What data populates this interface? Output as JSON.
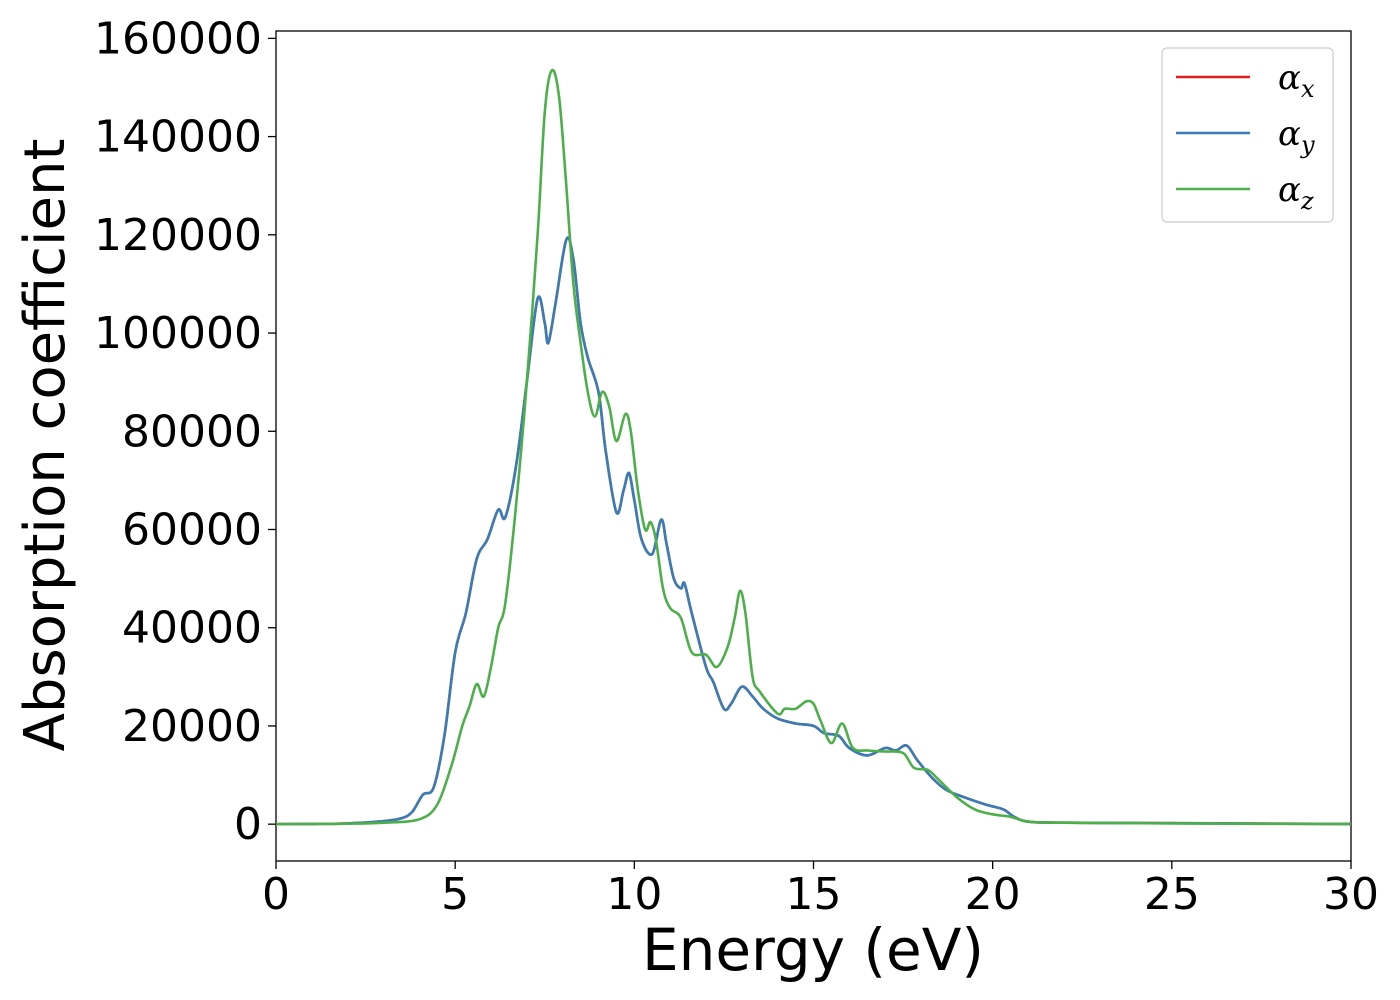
{
  "chart_data": {
    "type": "line",
    "title": "",
    "xlabel": "Energy (eV)",
    "ylabel": "Absorption coefficient",
    "xlim": [
      0,
      30
    ],
    "ylim": [
      -7500,
      161500
    ],
    "xticks": [
      0,
      5,
      10,
      15,
      20,
      25,
      30
    ],
    "yticks": [
      0,
      20000,
      40000,
      60000,
      80000,
      100000,
      120000,
      140000,
      160000
    ],
    "grid": false,
    "legend": "top-right",
    "series": [
      {
        "name": "αx",
        "legend_base": "α",
        "legend_sub": "x",
        "color": "#e41a1c",
        "points": [
          [
            0,
            0
          ],
          [
            1,
            50
          ],
          [
            2,
            150
          ],
          [
            3,
            600
          ],
          [
            3.5,
            1200
          ],
          [
            3.8,
            2500
          ],
          [
            4.1,
            6000
          ],
          [
            4.4,
            7500
          ],
          [
            4.7,
            18000
          ],
          [
            5.0,
            35000
          ],
          [
            5.3,
            43000
          ],
          [
            5.6,
            54000
          ],
          [
            5.9,
            58000
          ],
          [
            6.2,
            64000
          ],
          [
            6.4,
            62500
          ],
          [
            6.7,
            73000
          ],
          [
            7.0,
            90000
          ],
          [
            7.3,
            107000
          ],
          [
            7.5,
            102000
          ],
          [
            7.6,
            98000
          ],
          [
            7.8,
            106000
          ],
          [
            8.1,
            119000
          ],
          [
            8.3,
            115000
          ],
          [
            8.5,
            102000
          ],
          [
            8.7,
            95000
          ],
          [
            9.0,
            88000
          ],
          [
            9.2,
            76000
          ],
          [
            9.5,
            63500
          ],
          [
            9.7,
            68000
          ],
          [
            9.85,
            71500
          ],
          [
            10.0,
            66000
          ],
          [
            10.2,
            58000
          ],
          [
            10.5,
            55000
          ],
          [
            10.75,
            62000
          ],
          [
            10.9,
            57000
          ],
          [
            11.1,
            50000
          ],
          [
            11.3,
            48000
          ],
          [
            11.4,
            49000
          ],
          [
            11.6,
            43000
          ],
          [
            12.0,
            32000
          ],
          [
            12.2,
            29000
          ],
          [
            12.5,
            23500
          ],
          [
            12.7,
            24500
          ],
          [
            13.0,
            28000
          ],
          [
            13.3,
            26000
          ],
          [
            13.6,
            23500
          ],
          [
            14.0,
            21500
          ],
          [
            14.5,
            20500
          ],
          [
            15.0,
            20000
          ],
          [
            15.3,
            18500
          ],
          [
            15.7,
            18000
          ],
          [
            16.0,
            15500
          ],
          [
            16.5,
            14000
          ],
          [
            17.0,
            15500
          ],
          [
            17.3,
            15000
          ],
          [
            17.6,
            16000
          ],
          [
            17.9,
            13000
          ],
          [
            18.3,
            9500
          ],
          [
            18.7,
            7000
          ],
          [
            19.2,
            5500
          ],
          [
            19.8,
            4000
          ],
          [
            20.3,
            3000
          ],
          [
            20.6,
            1500
          ],
          [
            21,
            500
          ],
          [
            22,
            300
          ],
          [
            25,
            200
          ],
          [
            28,
            100
          ],
          [
            30,
            50
          ]
        ]
      },
      {
        "name": "αy",
        "legend_base": "α",
        "legend_sub": "y",
        "color": "#377eb8",
        "points": [
          [
            0,
            0
          ],
          [
            1,
            50
          ],
          [
            2,
            150
          ],
          [
            3,
            600
          ],
          [
            3.5,
            1200
          ],
          [
            3.8,
            2500
          ],
          [
            4.1,
            6000
          ],
          [
            4.4,
            7500
          ],
          [
            4.7,
            18000
          ],
          [
            5.0,
            35000
          ],
          [
            5.3,
            43000
          ],
          [
            5.6,
            54000
          ],
          [
            5.9,
            58000
          ],
          [
            6.2,
            64000
          ],
          [
            6.4,
            62500
          ],
          [
            6.7,
            73000
          ],
          [
            7.0,
            90000
          ],
          [
            7.3,
            107000
          ],
          [
            7.5,
            102000
          ],
          [
            7.6,
            98000
          ],
          [
            7.8,
            106000
          ],
          [
            8.1,
            119000
          ],
          [
            8.3,
            115000
          ],
          [
            8.5,
            102000
          ],
          [
            8.7,
            95000
          ],
          [
            9.0,
            88000
          ],
          [
            9.2,
            76000
          ],
          [
            9.5,
            63500
          ],
          [
            9.7,
            68000
          ],
          [
            9.85,
            71500
          ],
          [
            10.0,
            66000
          ],
          [
            10.2,
            58000
          ],
          [
            10.5,
            55000
          ],
          [
            10.75,
            62000
          ],
          [
            10.9,
            57000
          ],
          [
            11.1,
            50000
          ],
          [
            11.3,
            48000
          ],
          [
            11.4,
            49000
          ],
          [
            11.6,
            43000
          ],
          [
            12.0,
            32000
          ],
          [
            12.2,
            29000
          ],
          [
            12.5,
            23500
          ],
          [
            12.7,
            24500
          ],
          [
            13.0,
            28000
          ],
          [
            13.3,
            26000
          ],
          [
            13.6,
            23500
          ],
          [
            14.0,
            21500
          ],
          [
            14.5,
            20500
          ],
          [
            15.0,
            20000
          ],
          [
            15.3,
            18500
          ],
          [
            15.7,
            18000
          ],
          [
            16.0,
            15500
          ],
          [
            16.5,
            14000
          ],
          [
            17.0,
            15500
          ],
          [
            17.3,
            15000
          ],
          [
            17.6,
            16000
          ],
          [
            17.9,
            13000
          ],
          [
            18.3,
            9500
          ],
          [
            18.7,
            7000
          ],
          [
            19.2,
            5500
          ],
          [
            19.8,
            4000
          ],
          [
            20.3,
            3000
          ],
          [
            20.6,
            1500
          ],
          [
            21,
            500
          ],
          [
            22,
            300
          ],
          [
            25,
            200
          ],
          [
            28,
            100
          ],
          [
            30,
            50
          ]
        ]
      },
      {
        "name": "αz",
        "legend_base": "α",
        "legend_sub": "z",
        "color": "#4daf4a",
        "points": [
          [
            0,
            0
          ],
          [
            1,
            50
          ],
          [
            2,
            100
          ],
          [
            3,
            300
          ],
          [
            4,
            1000
          ],
          [
            4.5,
            4000
          ],
          [
            4.9,
            12000
          ],
          [
            5.2,
            20000
          ],
          [
            5.4,
            24000
          ],
          [
            5.6,
            28500
          ],
          [
            5.8,
            26000
          ],
          [
            6.0,
            32000
          ],
          [
            6.2,
            40000
          ],
          [
            6.4,
            45000
          ],
          [
            6.7,
            65000
          ],
          [
            7.0,
            90000
          ],
          [
            7.3,
            120000
          ],
          [
            7.5,
            145000
          ],
          [
            7.7,
            153500
          ],
          [
            7.9,
            148000
          ],
          [
            8.1,
            130000
          ],
          [
            8.3,
            110000
          ],
          [
            8.5,
            98000
          ],
          [
            8.7,
            88000
          ],
          [
            8.9,
            83000
          ],
          [
            9.1,
            88000
          ],
          [
            9.3,
            85000
          ],
          [
            9.5,
            78000
          ],
          [
            9.75,
            83500
          ],
          [
            9.9,
            80000
          ],
          [
            10.1,
            68000
          ],
          [
            10.3,
            60000
          ],
          [
            10.45,
            61500
          ],
          [
            10.6,
            58000
          ],
          [
            10.8,
            48000
          ],
          [
            11.0,
            44000
          ],
          [
            11.3,
            42000
          ],
          [
            11.6,
            35000
          ],
          [
            12.0,
            34500
          ],
          [
            12.3,
            32000
          ],
          [
            12.6,
            36000
          ],
          [
            12.8,
            42000
          ],
          [
            12.95,
            47500
          ],
          [
            13.1,
            43000
          ],
          [
            13.3,
            30000
          ],
          [
            13.5,
            27000
          ],
          [
            14.0,
            22500
          ],
          [
            14.2,
            23500
          ],
          [
            14.5,
            23500
          ],
          [
            14.8,
            25000
          ],
          [
            15.0,
            24500
          ],
          [
            15.2,
            21000
          ],
          [
            15.5,
            16500
          ],
          [
            15.8,
            20500
          ],
          [
            16.1,
            15500
          ],
          [
            16.5,
            15000
          ],
          [
            17.0,
            14800
          ],
          [
            17.5,
            14500
          ],
          [
            17.8,
            11500
          ],
          [
            18.2,
            11000
          ],
          [
            18.5,
            9000
          ],
          [
            19.0,
            5500
          ],
          [
            19.5,
            3000
          ],
          [
            20.0,
            2000
          ],
          [
            20.5,
            1500
          ],
          [
            21,
            500
          ],
          [
            22,
            300
          ],
          [
            25,
            150
          ],
          [
            28,
            80
          ],
          [
            30,
            40
          ]
        ]
      }
    ]
  }
}
